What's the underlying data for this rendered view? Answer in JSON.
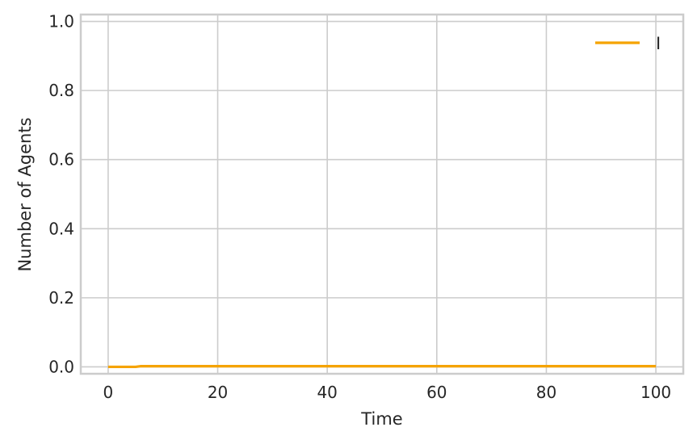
{
  "chart_data": {
    "type": "line",
    "title": "",
    "xlabel": "Time",
    "ylabel": "Number of Agents",
    "xlim": [
      -5,
      105
    ],
    "ylim": [
      -0.02,
      1.02
    ],
    "xticks": [
      0,
      20,
      40,
      60,
      80,
      100
    ],
    "yticks": [
      0.0,
      0.2,
      0.4,
      0.6,
      0.8,
      1.0
    ],
    "xtick_labels": [
      "0",
      "20",
      "40",
      "60",
      "80",
      "100"
    ],
    "ytick_labels": [
      "0.0",
      "0.2",
      "0.4",
      "0.6",
      "0.8",
      "1.0"
    ],
    "grid": true,
    "legend_position": "top-right",
    "series": [
      {
        "name": "I",
        "color": "#f5a300",
        "x": [
          0,
          5,
          6,
          100
        ],
        "y": [
          0.0,
          0.0,
          0.002,
          0.002
        ]
      }
    ]
  }
}
